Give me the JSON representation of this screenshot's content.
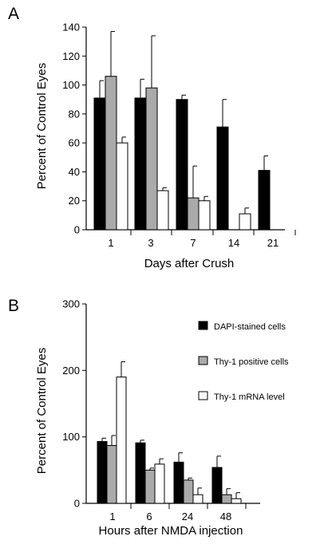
{
  "colors": {
    "DAPI-stained cells": "#000000",
    "Thy-1 positive cells": "#aaaaaa",
    "Thy-1 mRNA level": "#ffffff"
  },
  "chart_data": [
    {
      "panel": "A",
      "type": "bar",
      "xlabel": "Days after Crush",
      "ylabel": "Percent of Control Eyes",
      "ylim": [
        0,
        140
      ],
      "yticks": [
        0,
        20,
        40,
        60,
        80,
        100,
        120,
        140
      ],
      "categories": [
        "1",
        "3",
        "7",
        "14",
        "21"
      ],
      "series": [
        {
          "name": "DAPI-stained cells",
          "values": [
            91,
            91,
            90,
            71,
            41
          ],
          "err": [
            12,
            13,
            3,
            19,
            10
          ]
        },
        {
          "name": "Thy-1 positive cells",
          "values": [
            106,
            98,
            22,
            null,
            null
          ],
          "err": [
            31,
            36,
            22,
            null,
            null
          ]
        },
        {
          "name": "Thy-1 mRNA level",
          "values": [
            60,
            27,
            20,
            11,
            null
          ],
          "err": [
            4,
            2,
            3,
            4,
            null
          ]
        }
      ]
    },
    {
      "panel": "B",
      "type": "bar",
      "xlabel": "Hours after NMDA injection",
      "ylabel": "Percent of Control Eyes",
      "ylim": [
        0,
        300
      ],
      "yticks": [
        0,
        100,
        200,
        300
      ],
      "categories": [
        "1",
        "6",
        "24",
        "48"
      ],
      "legend_position": "right",
      "series": [
        {
          "name": "DAPI-stained cells",
          "values": [
            93,
            91,
            62,
            54
          ],
          "err": [
            5,
            4,
            14,
            17
          ]
        },
        {
          "name": "Thy-1 positive cells",
          "values": [
            87,
            50,
            35,
            13
          ],
          "err": [
            15,
            3,
            3,
            9
          ]
        },
        {
          "name": "Thy-1 mRNA level",
          "values": [
            190,
            59,
            13,
            7
          ],
          "err": [
            23,
            8,
            10,
            9
          ]
        }
      ]
    }
  ]
}
